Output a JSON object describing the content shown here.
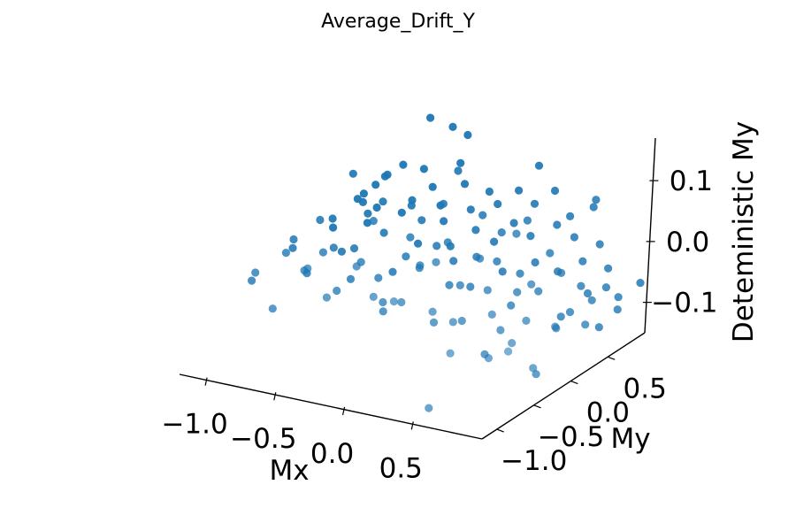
{
  "chart_data": {
    "type": "scatter",
    "title": "Average_Drift_Y",
    "xlabel": "Mx",
    "ylabel": "My",
    "zlabel": "Deteministic My",
    "xticks": [
      "−1.0",
      "−0.5",
      "0.0",
      "0.5"
    ],
    "yticks": [
      "−1.0",
      "−0.5",
      "0.0",
      "0.5"
    ],
    "zticks": [
      "−0.1",
      "0.0",
      "0.1"
    ],
    "xlim": [
      -1.2,
      1.0
    ],
    "ylim": [
      -1.2,
      1.0
    ],
    "zlim": [
      -0.15,
      0.17
    ],
    "point_color": "#1f77b4",
    "points": [
      [
        -1.0,
        0.85,
        -0.02
      ],
      [
        -0.95,
        0.83,
        -0.05
      ],
      [
        -0.88,
        0.78,
        0.02
      ],
      [
        -0.92,
        0.7,
        0.01
      ],
      [
        -0.85,
        0.88,
        0.03
      ],
      [
        -0.8,
        0.75,
        0.04
      ],
      [
        -0.78,
        0.62,
        0.0
      ],
      [
        -0.7,
        0.8,
        0.06
      ],
      [
        -0.65,
        0.72,
        -0.01
      ],
      [
        -0.6,
        0.9,
        0.05
      ],
      [
        -0.55,
        0.66,
        0.02
      ],
      [
        -0.5,
        0.84,
        0.03
      ],
      [
        -0.45,
        0.58,
        -0.04
      ],
      [
        -0.4,
        0.77,
        0.01
      ],
      [
        -0.35,
        0.92,
        0.07
      ],
      [
        -0.3,
        0.63,
        0.0
      ],
      [
        -0.25,
        0.8,
        0.05
      ],
      [
        -0.2,
        0.55,
        -0.03
      ],
      [
        -0.15,
        0.71,
        0.02
      ],
      [
        -0.1,
        0.86,
        0.04
      ],
      [
        -0.05,
        0.6,
        0.0
      ],
      [
        0.0,
        0.79,
        0.03
      ],
      [
        0.05,
        0.67,
        -0.02
      ],
      [
        0.1,
        0.88,
        0.05
      ],
      [
        0.15,
        0.74,
        0.01
      ],
      [
        0.2,
        0.52,
        -0.05
      ],
      [
        0.25,
        0.82,
        0.04
      ],
      [
        0.3,
        0.69,
        0.0
      ],
      [
        0.35,
        0.9,
        0.06
      ],
      [
        0.4,
        0.58,
        -0.03
      ],
      [
        0.45,
        0.76,
        0.02
      ],
      [
        0.5,
        0.84,
        0.03
      ],
      [
        0.55,
        0.61,
        -0.04
      ],
      [
        0.6,
        0.72,
        0.01
      ],
      [
        0.65,
        0.87,
        0.05
      ],
      [
        0.7,
        0.66,
        -0.02
      ],
      [
        0.75,
        0.79,
        0.0
      ],
      [
        0.8,
        0.56,
        -0.06
      ],
      [
        0.85,
        0.73,
        -0.03
      ],
      [
        0.9,
        0.62,
        -0.05
      ],
      [
        0.95,
        0.7,
        -0.07
      ],
      [
        1.0,
        0.6,
        -0.08
      ],
      [
        -1.0,
        0.45,
        -0.03
      ],
      [
        -0.93,
        0.3,
        0.0
      ],
      [
        -0.86,
        0.5,
        0.02
      ],
      [
        -0.8,
        0.2,
        -0.04
      ],
      [
        -0.73,
        0.4,
        0.01
      ],
      [
        -0.66,
        0.1,
        -0.02
      ],
      [
        -0.6,
        0.35,
        0.04
      ],
      [
        -0.53,
        0.25,
        0.0
      ],
      [
        -0.46,
        0.48,
        0.03
      ],
      [
        -0.4,
        0.15,
        -0.05
      ],
      [
        -0.33,
        0.38,
        0.02
      ],
      [
        -0.26,
        0.05,
        -0.01
      ],
      [
        -0.2,
        0.42,
        0.05
      ],
      [
        -0.13,
        0.22,
        0.0
      ],
      [
        -0.06,
        0.33,
        -0.03
      ],
      [
        0.0,
        0.12,
        0.02
      ],
      [
        0.06,
        0.47,
        0.04
      ],
      [
        0.13,
        0.28,
        -0.01
      ],
      [
        0.2,
        0.08,
        -0.04
      ],
      [
        0.26,
        0.36,
        0.03
      ],
      [
        0.33,
        0.18,
        0.0
      ],
      [
        0.4,
        0.44,
        0.05
      ],
      [
        0.46,
        0.26,
        -0.02
      ],
      [
        0.53,
        0.02,
        -0.05
      ],
      [
        0.6,
        0.39,
        0.01
      ],
      [
        0.66,
        0.14,
        -0.03
      ],
      [
        0.73,
        0.31,
        -0.01
      ],
      [
        0.8,
        0.46,
        -0.04
      ],
      [
        0.86,
        0.21,
        -0.06
      ],
      [
        0.93,
        0.37,
        -0.05
      ],
      [
        1.0,
        0.16,
        -0.07
      ],
      [
        -1.0,
        -0.1,
        -0.02
      ],
      [
        -0.92,
        -0.25,
        0.01
      ],
      [
        -0.84,
        -0.05,
        0.03
      ],
      [
        -0.76,
        -0.35,
        -0.03
      ],
      [
        -0.68,
        -0.15,
        0.0
      ],
      [
        -0.6,
        -0.45,
        0.02
      ],
      [
        -0.52,
        -0.2,
        -0.04
      ],
      [
        -0.44,
        -0.08,
        0.05
      ],
      [
        -0.36,
        -0.38,
        0.01
      ],
      [
        -0.28,
        -0.28,
        -0.02
      ],
      [
        -0.2,
        -0.02,
        0.03
      ],
      [
        -0.12,
        -0.5,
        -0.05
      ],
      [
        -0.04,
        -0.18,
        0.0
      ],
      [
        0.04,
        -0.33,
        0.02
      ],
      [
        0.12,
        -0.06,
        -0.03
      ],
      [
        0.2,
        -0.42,
        0.04
      ],
      [
        0.28,
        -0.22,
        -0.01
      ],
      [
        0.36,
        -0.12,
        0.03
      ],
      [
        0.44,
        -0.48,
        -0.04
      ],
      [
        0.52,
        -0.3,
        0.0
      ],
      [
        0.6,
        -0.04,
        -0.02
      ],
      [
        0.68,
        -0.4,
        -0.05
      ],
      [
        0.76,
        -0.16,
        0.01
      ],
      [
        0.84,
        -0.36,
        -0.03
      ],
      [
        0.92,
        -0.09,
        -0.06
      ],
      [
        1.0,
        -0.26,
        -0.04
      ],
      [
        -1.0,
        -0.65,
        -0.03
      ],
      [
        -0.9,
        -0.8,
        0.0
      ],
      [
        -0.8,
        -0.58,
        0.02
      ],
      [
        -0.7,
        -0.92,
        -0.04
      ],
      [
        -0.6,
        -0.7,
        0.01
      ],
      [
        -0.5,
        -0.85,
        0.03
      ],
      [
        -0.4,
        -0.62,
        -0.02
      ],
      [
        -0.3,
        -0.95,
        0.0
      ],
      [
        -0.2,
        -0.75,
        0.04
      ],
      [
        -0.1,
        -0.55,
        -0.03
      ],
      [
        0.0,
        -0.88,
        0.01
      ],
      [
        0.1,
        -0.68,
        -0.01
      ],
      [
        0.2,
        -0.98,
        0.02
      ],
      [
        0.3,
        -0.6,
        -0.04
      ],
      [
        0.4,
        -0.82,
        0.0
      ],
      [
        0.5,
        -0.72,
        -0.02
      ],
      [
        0.6,
        -0.93,
        -0.05
      ],
      [
        0.7,
        -0.57,
        -0.01
      ],
      [
        0.8,
        -0.78,
        -0.06
      ],
      [
        0.9,
        -0.66,
        -0.04
      ],
      [
        1.0,
        -0.9,
        -0.03
      ],
      [
        -0.6,
        0.95,
        0.13
      ],
      [
        -0.45,
        0.98,
        0.12
      ],
      [
        -0.35,
        1.0,
        0.11
      ],
      [
        0.2,
        0.95,
        0.09
      ],
      [
        -0.8,
        0.3,
        0.08
      ],
      [
        -0.2,
        0.6,
        0.09
      ],
      [
        0.5,
        0.1,
        0.06
      ],
      [
        0.7,
        0.8,
        0.07
      ],
      [
        0.55,
        -0.35,
        -0.1
      ],
      [
        0.85,
        -0.2,
        -0.13
      ],
      [
        0.9,
        0.55,
        -0.11
      ],
      [
        0.4,
        -0.8,
        -0.16
      ],
      [
        0.98,
        -0.5,
        -0.09
      ],
      [
        0.75,
        0.3,
        -0.08
      ],
      [
        1.0,
        0.9,
        -0.06
      ]
    ]
  }
}
